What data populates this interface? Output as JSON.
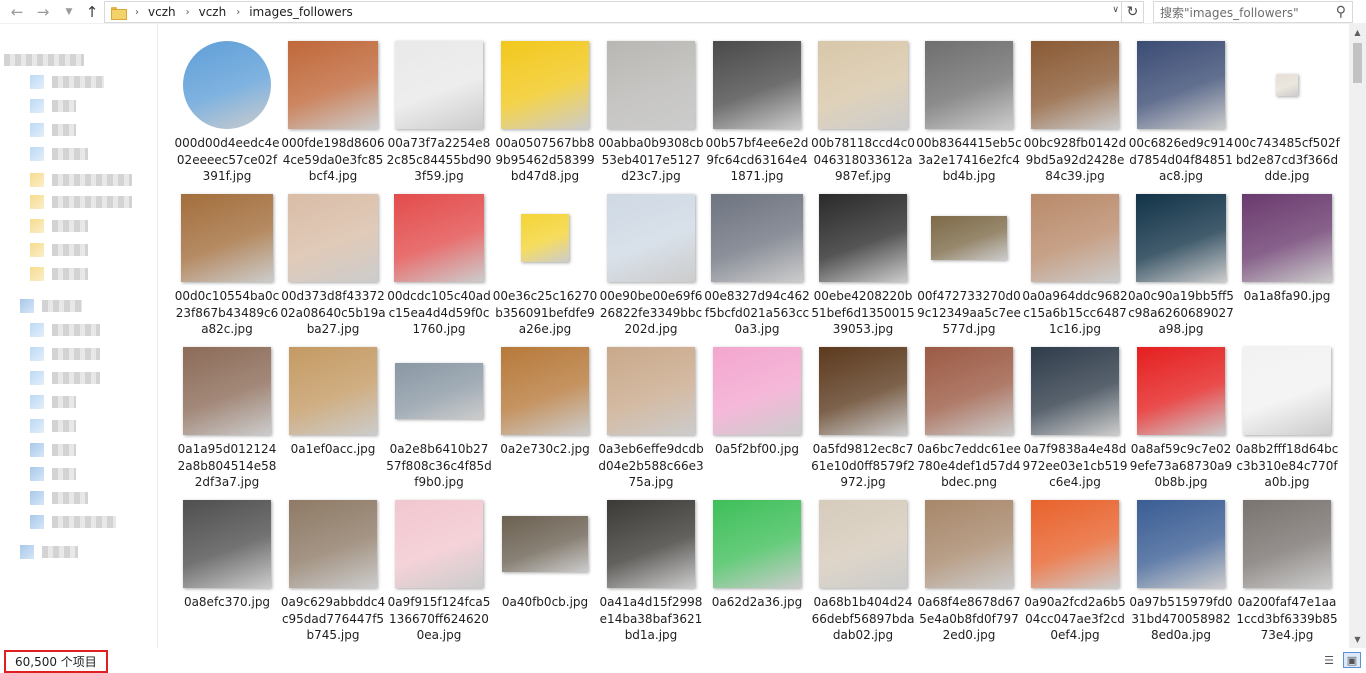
{
  "nav": {
    "back_icon": "arrow-left-icon",
    "forward_icon": "arrow-right-icon",
    "recent_icon": "chevron-down-icon",
    "up_icon": "arrow-up-icon"
  },
  "breadcrumb": [
    "vczh",
    "vczh",
    "images_followers"
  ],
  "search": {
    "placeholder": "搜索\"images_followers\""
  },
  "status": {
    "item_count": "60,500 个项目"
  },
  "files": [
    {
      "name": "000d00d4eedc4e02eeeec57ce02f391f.jpg",
      "color": "#5f9fd8"
    },
    {
      "name": "000fde198d86064ce59da0e3fc85bcf4.jpg",
      "color": "#c0683a"
    },
    {
      "name": "00a73f7a2254e82c85c84455bd903f59.jpg",
      "color": "#e9e9e9"
    },
    {
      "name": "00a0507567bb89b95462d58399bd47d8.jpg",
      "color": "#f2c81c"
    },
    {
      "name": "00abba0b9308cb53eb4017e5127d23c7.jpg",
      "color": "#b8b7b4"
    },
    {
      "name": "00b57bf4ee6e2d9fc64cd63164e41871.jpg",
      "color": "#4a4a4a"
    },
    {
      "name": "00b78118ccd4c0046318033612a987ef.jpg",
      "color": "#d8c7a9"
    },
    {
      "name": "00b8364415eb5c3a2e17416e2fc4bd4b.jpg",
      "color": "#6f6f6f"
    },
    {
      "name": "00bc928fb0142d9bd5a92d2428e84c39.jpg",
      "color": "#8a5a34"
    },
    {
      "name": "00c6826ed9c914d7854d04f84851ac8.jpg",
      "color": "#3b4c74"
    },
    {
      "name": "00c743485cf502fbd2e87cd3f366ddde.jpg",
      "color": "#e6e0d6"
    },
    {
      "name": "00d0c10554ba0c23f867b43489c6a82c.jpg",
      "color": "#a36e3c"
    },
    {
      "name": "00d373d8f4337202a08640c5b19aba27.jpg",
      "color": "#d9bda7"
    },
    {
      "name": "00dcdc105c40adc15ea4d4d59f0c1760.jpg",
      "color": "#e34c4c"
    },
    {
      "name": "00e36c25c16270b356091befdfe9a26e.jpg",
      "color": "#f4d436"
    },
    {
      "name": "00e90be00e69f626822fe3349bbc202d.jpg",
      "color": "#cfd9e4"
    },
    {
      "name": "00e8327d94c462f5bcfd021a563cc0a3.jpg",
      "color": "#6e7480"
    },
    {
      "name": "00ebe4208220b51bef6d135001539053.jpg",
      "color": "#2a2a2a"
    },
    {
      "name": "00f472733270d09c12349aa5c7ee577d.jpg",
      "color": "#7d6a48"
    },
    {
      "name": "0a0a964ddc9682c15a6b15cc64871c16.jpg",
      "color": "#b98a6a"
    },
    {
      "name": "0a0c90a19bb5ff5c98a6260689027a98.jpg",
      "color": "#123348"
    },
    {
      "name": "0a1a8fa90.jpg",
      "color": "#6a3a6e"
    },
    {
      "name": "0a1a95d0121242a8b804514e582df3a7.jpg",
      "color": "#8c6b58"
    },
    {
      "name": "0a1ef0acc.jpg",
      "color": "#c49a63"
    },
    {
      "name": "0a2e8b6410b2757f808c36c4f85df9b0.jpg",
      "color": "#8a98a4"
    },
    {
      "name": "0a2e730c2.jpg",
      "color": "#b7793a"
    },
    {
      "name": "0a3eb6effe9dcdbd04e2b588c66e375a.jpg",
      "color": "#c9a98b"
    },
    {
      "name": "0a5f2bf00.jpg",
      "color": "#f3a6cf"
    },
    {
      "name": "0a5fd9812ec8c761e10d0ff8579f2972.jpg",
      "color": "#5c3a1e"
    },
    {
      "name": "0a6bc7eddc61ee780e4def1d57d4bdec.png",
      "color": "#9c5a44"
    },
    {
      "name": "0a7f9838a4e48d972ee03e1cb519c6e4.jpg",
      "color": "#2f3c4a"
    },
    {
      "name": "0a8af59c9c7e029efe73a68730a90b8b.jpg",
      "color": "#e51f1f"
    },
    {
      "name": "0a8b2fff18d64bcc3b310e84c770fa0b.jpg",
      "color": "#f2f2f2"
    },
    {
      "name": "0a8efc370.jpg",
      "color": "#4f4f4f"
    },
    {
      "name": "0a9c629abbddc4c95dad776447f5b745.jpg",
      "color": "#8e7a66"
    },
    {
      "name": "0a9f915f124fca5136670ff6246200ea.jpg",
      "color": "#f2c7cf"
    },
    {
      "name": "0a40fb0cb.jpg",
      "color": "#6b6152"
    },
    {
      "name": "0a41a4d15f2998e14ba38baf3621bd1a.jpg",
      "color": "#3c3a36"
    },
    {
      "name": "0a62d2a36.jpg",
      "color": "#3fbf5a"
    },
    {
      "name": "0a68b1b404d2466debf56897bdadab02.jpg",
      "color": "#d6cbbb"
    },
    {
      "name": "0a68f4e8678d675e4a0b8fd0f7972ed0.jpg",
      "color": "#a7876a"
    },
    {
      "name": "0a90a2fcd2a6b504cc047ae3f2cd0ef4.jpg",
      "color": "#e8622c"
    },
    {
      "name": "0a97b515979fd031bd4700589828ed0a.jpg",
      "color": "#3a5d94"
    },
    {
      "name": "0a200faf47e1aa1ccd3bf6339b8573e4.jpg",
      "color": "#7a7470"
    }
  ]
}
